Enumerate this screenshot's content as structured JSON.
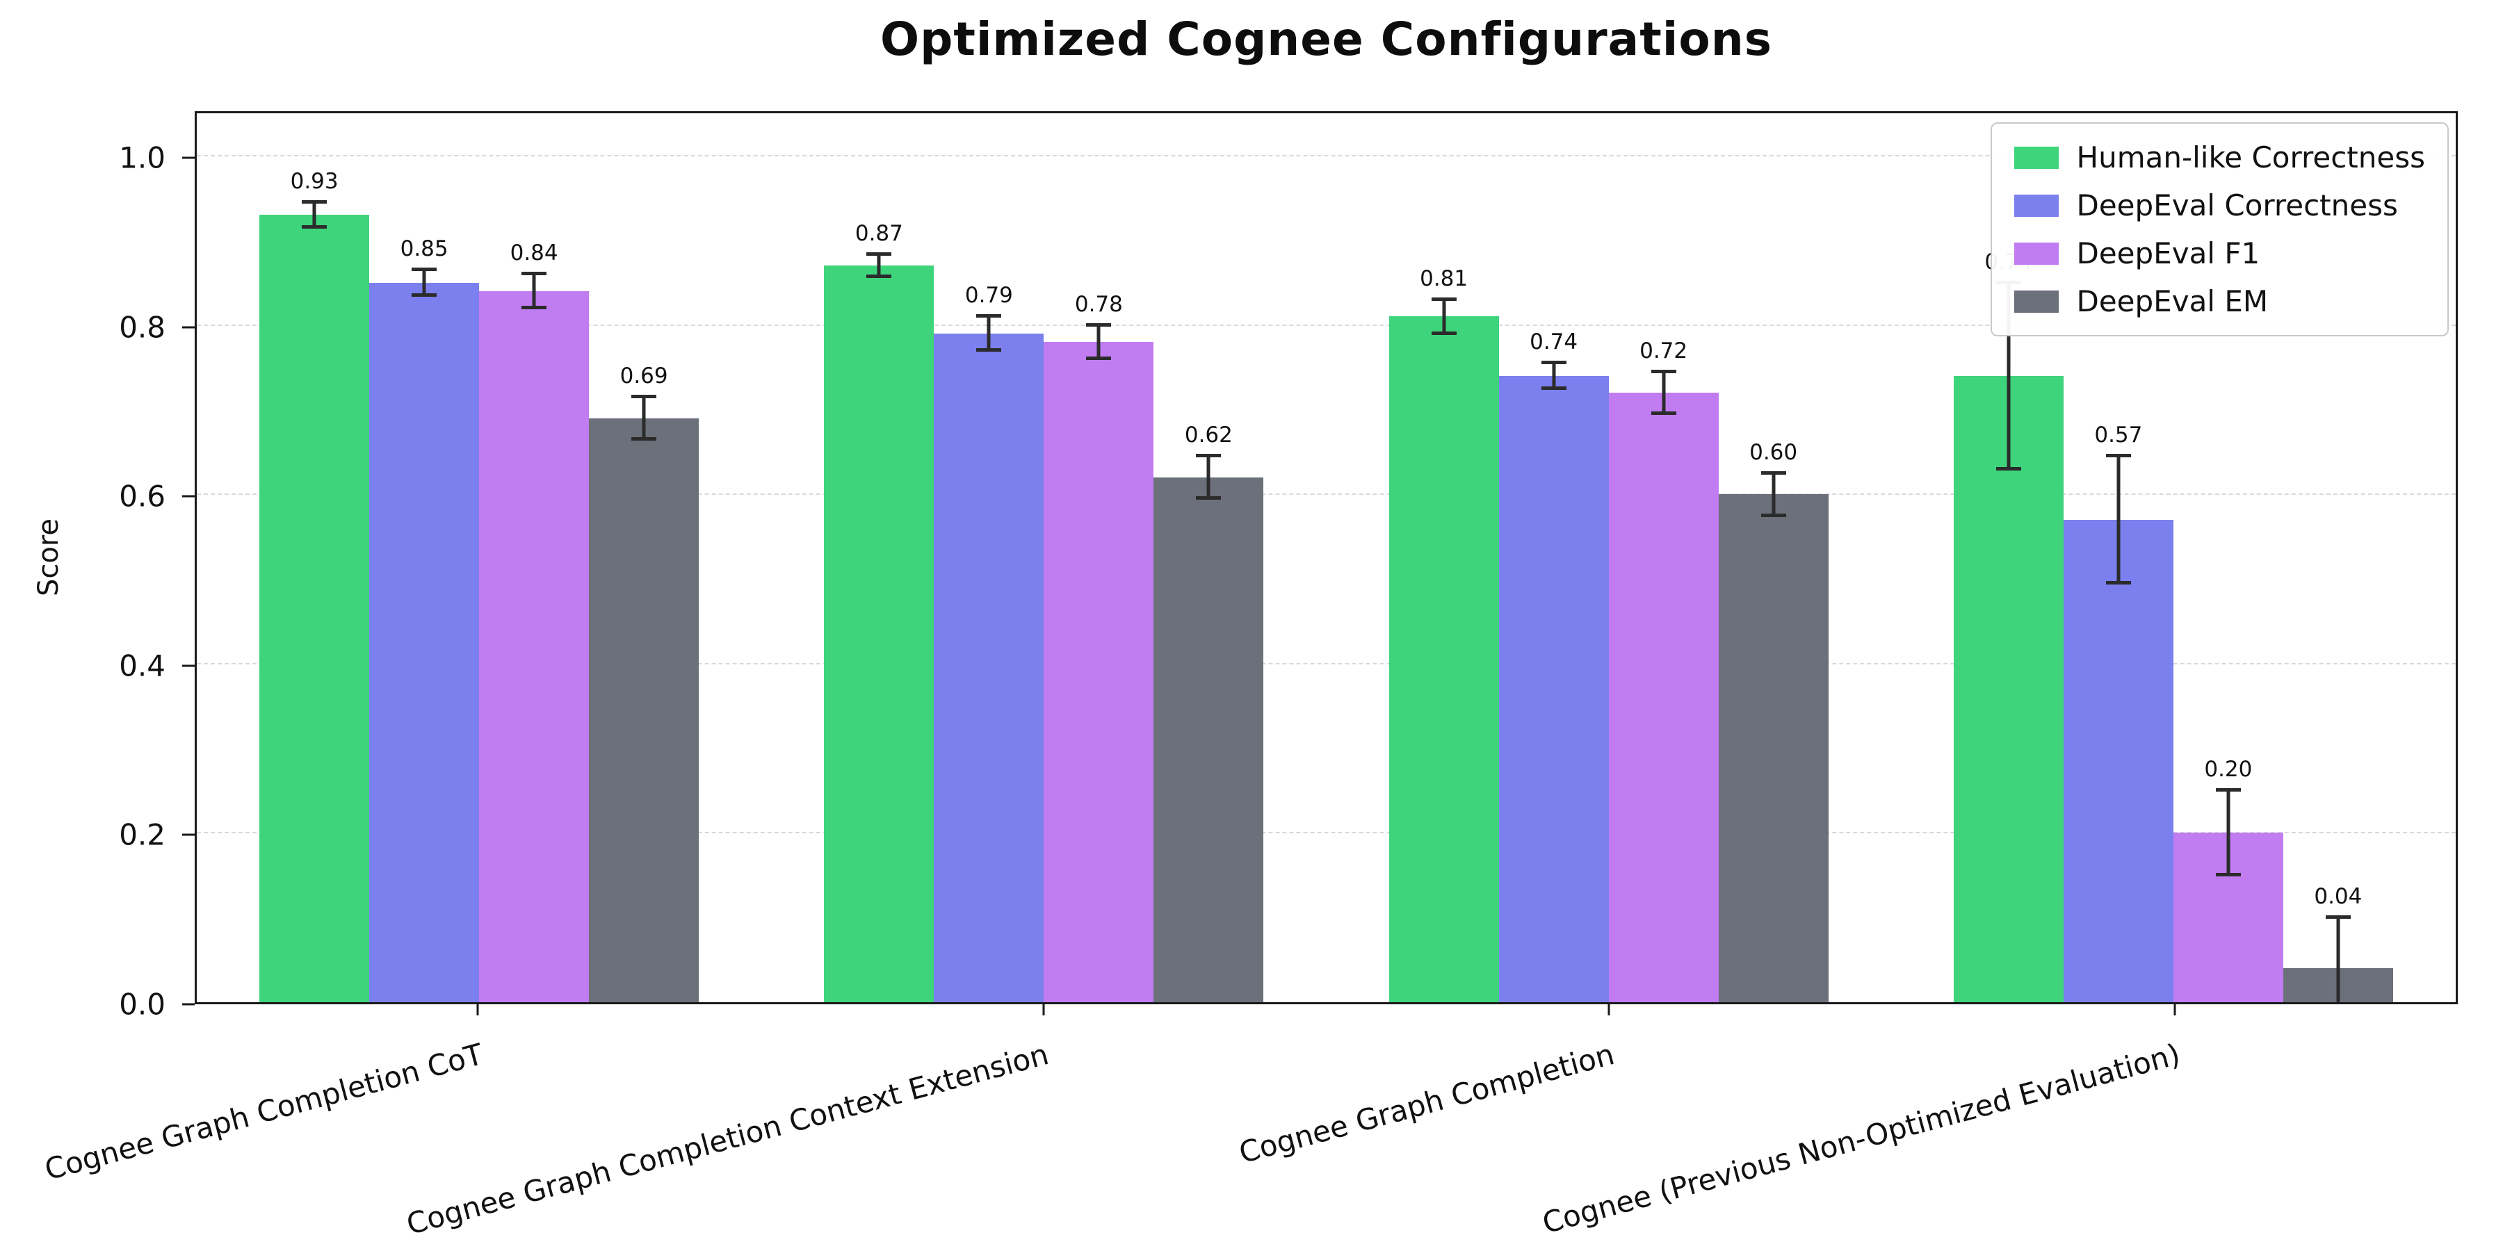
{
  "title": "Optimized Cognee Configurations",
  "chart_data": {
    "type": "bar",
    "title": "Optimized Cognee Configurations",
    "xlabel": "",
    "ylabel": "Score",
    "ylim": [
      0,
      1.05
    ],
    "yticks": [
      0,
      0.2,
      0.4,
      0.6,
      0.8,
      1.0
    ],
    "grid": "horizontal dashed",
    "legend_position": "upper right",
    "bar_value_labels": true,
    "error_bars": true,
    "categories": [
      "Cognee Graph Completion CoT",
      "Cognee Graph Completion Context Extension",
      "Cognee Graph Completion",
      "Cognee (Previous Non-Optimized Evaluation)"
    ],
    "series": [
      {
        "name": "Human-like Correctness",
        "color": "#3ed47c",
        "values": [
          0.93,
          0.87,
          0.81,
          0.74
        ],
        "errors": [
          0.015,
          0.013,
          0.02,
          0.11
        ]
      },
      {
        "name": "DeepEval Correctness",
        "color": "#7b80ee",
        "values": [
          0.85,
          0.79,
          0.74,
          0.57
        ],
        "errors": [
          0.015,
          0.02,
          0.015,
          0.075
        ]
      },
      {
        "name": "DeepEval F1",
        "color": "#c07cf0",
        "values": [
          0.84,
          0.78,
          0.72,
          0.2
        ],
        "errors": [
          0.02,
          0.02,
          0.025,
          0.05
        ]
      },
      {
        "name": "DeepEval EM",
        "color": "#6b707a",
        "values": [
          0.69,
          0.62,
          0.6,
          0.04
        ],
        "errors": [
          0.025,
          0.025,
          0.025,
          0.06
        ]
      }
    ]
  }
}
